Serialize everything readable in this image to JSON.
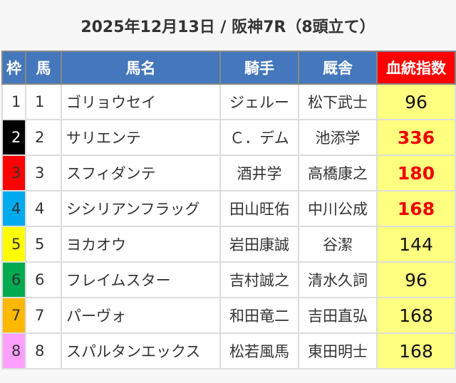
{
  "title": "2025年12月13日 / 阪神7R（8頭立て）",
  "headers": [
    "枠",
    "馬",
    "馬名",
    "騎手",
    "厩舎",
    "血統指数"
  ],
  "colors": {
    "header": "#4477bb",
    "index_header": "#ff0000",
    "score_bg": "#ffff80",
    "highlight": "#ee0000"
  },
  "rows": [
    {
      "frame": "1",
      "frame_color": "#ffffff",
      "frame_text": "#333333",
      "num": "1",
      "horse": "ゴリョウセイ",
      "jockey": "ジェルー",
      "trainer": "松下武士",
      "score": "96",
      "highlight": false
    },
    {
      "frame": "2",
      "frame_color": "#000000",
      "frame_text": "#ffffff",
      "num": "2",
      "horse": "サリエンテ",
      "jockey": "Ｃ．デム",
      "trainer": "池添学",
      "score": "336",
      "highlight": true
    },
    {
      "frame": "3",
      "frame_color": "#ff0000",
      "frame_text": "#333333",
      "num": "3",
      "horse": "スフィダンテ",
      "jockey": "酒井学",
      "trainer": "高橋康之",
      "score": "180",
      "highlight": true
    },
    {
      "frame": "4",
      "frame_color": "#00aaee",
      "frame_text": "#333333",
      "num": "4",
      "horse": "シシリアンフラッグ",
      "jockey": "田山旺佑",
      "trainer": "中川公成",
      "score": "168",
      "highlight": true
    },
    {
      "frame": "5",
      "frame_color": "#ffff00",
      "frame_text": "#333333",
      "num": "5",
      "horse": "ヨカオウ",
      "jockey": "岩田康誠",
      "trainer": "谷潔",
      "score": "144",
      "highlight": false
    },
    {
      "frame": "6",
      "frame_color": "#00aa50",
      "frame_text": "#333333",
      "num": "6",
      "horse": "フレイムスター",
      "jockey": "吉村誠之",
      "trainer": "清水久詞",
      "score": "96",
      "highlight": false
    },
    {
      "frame": "7",
      "frame_color": "#ffb800",
      "frame_text": "#333333",
      "num": "7",
      "horse": "パーヴォ",
      "jockey": "和田竜二",
      "trainer": "吉田直弘",
      "score": "168",
      "highlight": false
    },
    {
      "frame": "8",
      "frame_color": "#ffa0ff",
      "frame_text": "#333333",
      "num": "8",
      "horse": "スパルタンエックス",
      "jockey": "松若風馬",
      "trainer": "東田明士",
      "score": "168",
      "highlight": false
    }
  ]
}
